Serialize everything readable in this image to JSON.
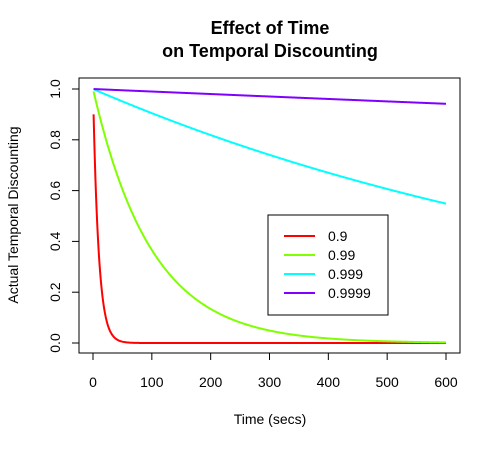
{
  "chart_data": {
    "type": "line",
    "title": [
      "Effect of Time",
      "on Temporal Discounting"
    ],
    "xlabel": "Time (secs)",
    "ylabel": "Actual Temporal Discounting",
    "xlim": [
      0,
      600
    ],
    "ylim": [
      0,
      1
    ],
    "x_ticks": [
      0,
      100,
      200,
      300,
      400,
      500,
      600
    ],
    "y_ticks": [
      0.0,
      0.2,
      0.4,
      0.6,
      0.8,
      1.0
    ],
    "x_tick_labels": [
      "0",
      "100",
      "200",
      "300",
      "400",
      "500",
      "600"
    ],
    "y_tick_labels": [
      "0.0",
      "0.2",
      "0.4",
      "0.6",
      "0.8",
      "1.0"
    ],
    "grid": false,
    "legend_placement": "center-right",
    "series": [
      {
        "name": "0.9",
        "base": 0.9,
        "color": "#FF0000",
        "x": [
          1,
          2,
          3,
          4,
          5,
          6,
          8,
          10,
          12,
          15,
          20,
          25,
          30,
          40,
          50,
          60,
          80,
          100,
          200,
          300,
          400,
          500,
          600
        ],
        "values": [
          0.9,
          0.81,
          0.729,
          0.6561,
          0.5905,
          0.5314,
          0.4305,
          0.3487,
          0.2824,
          0.2059,
          0.1216,
          0.0718,
          0.0424,
          0.0148,
          0.0052,
          0.0018,
          0.0002,
          0.0,
          0.0,
          0.0,
          0.0,
          0.0,
          0.0
        ]
      },
      {
        "name": "0.99",
        "base": 0.99,
        "color": "#80FF00",
        "x": [
          1,
          10,
          25,
          50,
          75,
          100,
          150,
          200,
          250,
          300,
          350,
          400,
          450,
          500,
          550,
          600
        ],
        "values": [
          0.99,
          0.9044,
          0.7778,
          0.605,
          0.4706,
          0.366,
          0.2215,
          0.134,
          0.0811,
          0.049,
          0.0297,
          0.018,
          0.0109,
          0.0066,
          0.004,
          0.0024
        ]
      },
      {
        "name": "0.999",
        "base": 0.999,
        "color": "#00FFFF",
        "x": [
          1,
          50,
          100,
          150,
          200,
          250,
          300,
          350,
          400,
          450,
          500,
          550,
          600
        ],
        "values": [
          0.999,
          0.9512,
          0.9048,
          0.8607,
          0.8187,
          0.7788,
          0.7408,
          0.7046,
          0.6702,
          0.6375,
          0.6064,
          0.5768,
          0.5487
        ]
      },
      {
        "name": "0.9999",
        "base": 0.9999,
        "color": "#8000FF",
        "x": [
          1,
          100,
          200,
          300,
          400,
          500,
          600
        ],
        "values": [
          0.9999,
          0.99,
          0.9802,
          0.9704,
          0.9608,
          0.9512,
          0.9418
        ]
      }
    ]
  }
}
